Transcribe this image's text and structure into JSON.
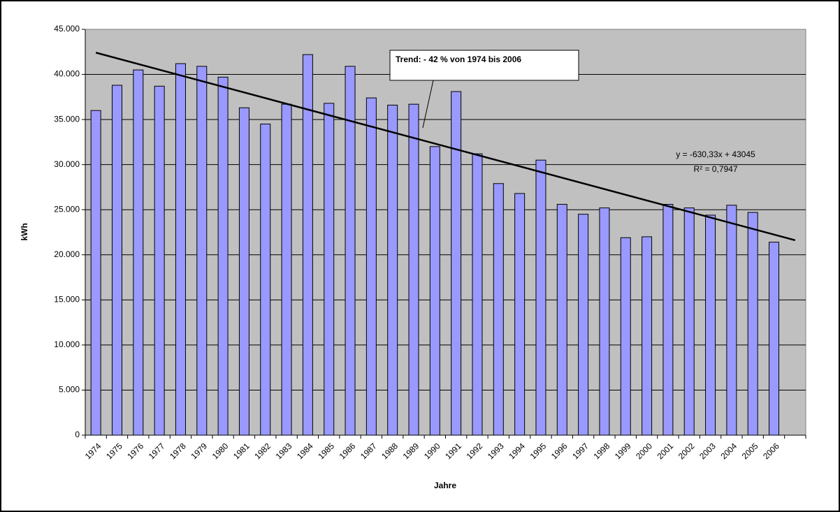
{
  "chart_data": {
    "type": "bar",
    "y_label": "kWh",
    "x_label": "Jahre",
    "categories": [
      "1974",
      "1975",
      "1976",
      "1977",
      "1978",
      "1979",
      "1980",
      "1981",
      "1982",
      "1983",
      "1984",
      "1985",
      "1986",
      "1987",
      "1988",
      "1989",
      "1990",
      "1991",
      "1992",
      "1993",
      "1994",
      "1995",
      "1996",
      "1997",
      "1998",
      "1999",
      "2000",
      "2001",
      "2002",
      "2003",
      "2004",
      "2005",
      "2006",
      null
    ],
    "values": [
      36000,
      38800,
      40500,
      38700,
      41200,
      40900,
      39700,
      36300,
      34500,
      36700,
      42200,
      36800,
      40900,
      37400,
      36600,
      36700,
      32000,
      38100,
      31200,
      27900,
      26800,
      30500,
      25600,
      24500,
      25200,
      21900,
      22000,
      25600,
      25200,
      24400,
      25500,
      24700,
      21400,
      null
    ],
    "color": "#9999ff",
    "ylim": [
      0,
      45000
    ],
    "yticks": [
      0,
      {
        "value": 5000,
        "label": "5.000"
      },
      {
        "value": 10000,
        "label": "10.000"
      },
      {
        "value": 15000,
        "label": "15.000"
      },
      {
        "value": 20000,
        "label": "20.000"
      },
      {
        "value": 25000,
        "label": "25.000"
      },
      {
        "value": 30000,
        "label": "30.000"
      },
      {
        "value": 35000,
        "label": "35.000"
      },
      {
        "value": 40000,
        "label": "40.000"
      },
      {
        "value": 45000,
        "label": "45.000"
      }
    ],
    "grid": true,
    "trend": {
      "slope": -630.33,
      "intercept": 43045,
      "equation": "y = -630,33x + 43045",
      "r2": "R² = 0,7947"
    },
    "annotation": "Trend: - 42 % von 1974 bis 2006"
  }
}
